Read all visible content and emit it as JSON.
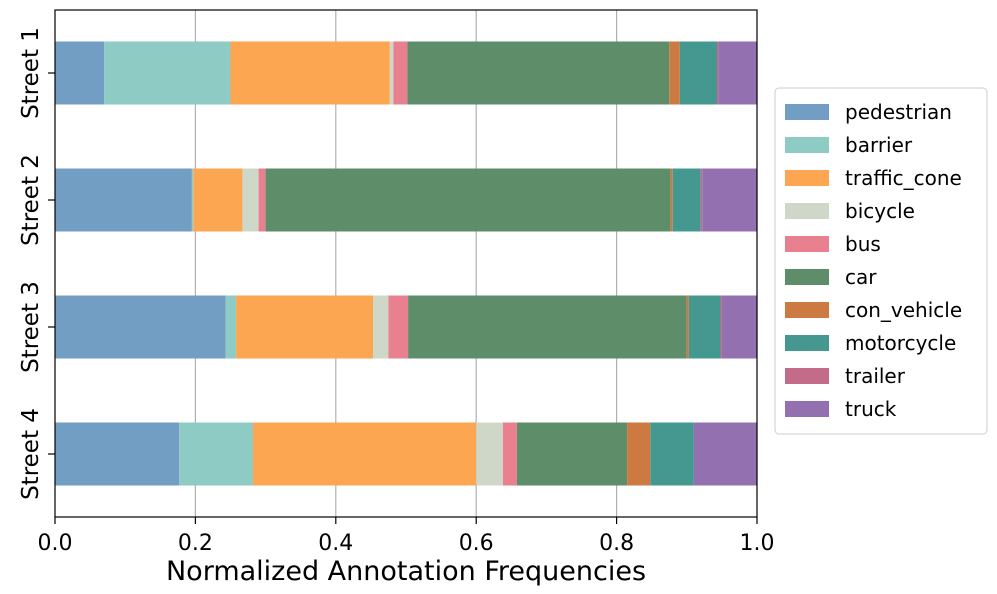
{
  "chart_data": {
    "type": "bar",
    "orientation": "horizontal",
    "stacked": true,
    "title": "",
    "xlabel": "Normalized Annotation Frequencies",
    "ylabel": "",
    "xlim": [
      0,
      1
    ],
    "xticks": [
      0.0,
      0.2,
      0.4,
      0.6,
      0.8,
      1.0
    ],
    "xtick_labels": [
      "0.0",
      "0.2",
      "0.4",
      "0.6",
      "0.8",
      "1.0"
    ],
    "grid": "vertical",
    "legend_position": "right",
    "categories": [
      "Street 1",
      "Street 2",
      "Street 3",
      "Street 4"
    ],
    "series": [
      {
        "name": "pedestrian",
        "color": "#729ec4",
        "values": [
          0.07,
          0.195,
          0.243,
          0.177
        ]
      },
      {
        "name": "barrier",
        "color": "#8ecbc4",
        "values": [
          0.18,
          0.002,
          0.015,
          0.105
        ]
      },
      {
        "name": "traffic_cone",
        "color": "#fda652",
        "values": [
          0.227,
          0.07,
          0.195,
          0.318
        ]
      },
      {
        "name": "bicycle",
        "color": "#cfd8c8",
        "values": [
          0.005,
          0.023,
          0.022,
          0.038
        ]
      },
      {
        "name": "bus",
        "color": "#e98090",
        "values": [
          0.02,
          0.01,
          0.028,
          0.02
        ]
      },
      {
        "name": "car",
        "color": "#5e8d69",
        "values": [
          0.373,
          0.577,
          0.397,
          0.157
        ]
      },
      {
        "name": "con_vehicle",
        "color": "#cc7a42",
        "values": [
          0.015,
          0.003,
          0.003,
          0.033
        ]
      },
      {
        "name": "motorcycle",
        "color": "#459890",
        "values": [
          0.053,
          0.04,
          0.045,
          0.062
        ]
      },
      {
        "name": "trailer",
        "color": "#c56b8a",
        "values": [
          0.002,
          0.002,
          0.002,
          0.0
        ]
      },
      {
        "name": "truck",
        "color": "#9370b0",
        "values": [
          0.055,
          0.078,
          0.05,
          0.09
        ]
      }
    ]
  }
}
